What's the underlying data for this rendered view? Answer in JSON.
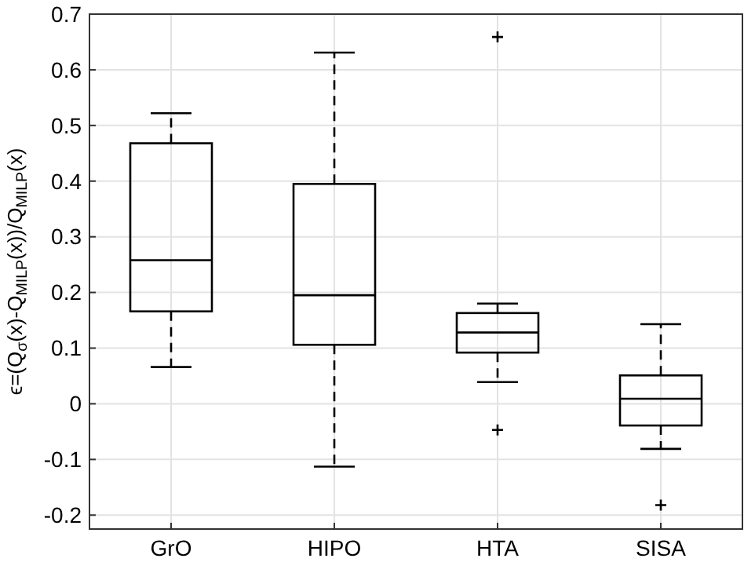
{
  "chart_data": {
    "type": "box",
    "ylabel": "ϵ=(Q$_{σ}$(x)-Q$_{MILP}$(x))/Q$_{MILP}$(x)",
    "categories": [
      "GrO",
      "HIPO",
      "HTA",
      "SISA"
    ],
    "boxes": [
      {
        "low": 0.066,
        "q1": 0.166,
        "median": 0.258,
        "q3": 0.468,
        "high": 0.522
      },
      {
        "low": -0.113,
        "q1": 0.106,
        "median": 0.195,
        "q3": 0.395,
        "high": 0.631
      },
      {
        "low": 0.039,
        "q1": 0.092,
        "median": 0.128,
        "q3": 0.163,
        "high": 0.18,
        "outliers": [
          0.659,
          -0.047
        ]
      },
      {
        "low": -0.081,
        "q1": -0.039,
        "median": 0.009,
        "q3": 0.051,
        "high": 0.143,
        "outliers": [
          -0.182
        ]
      }
    ],
    "ylim": [
      -0.225,
      0.7
    ],
    "yticks": [
      -0.2,
      -0.1,
      0,
      0.1,
      0.2,
      0.3,
      0.4,
      0.5,
      0.6,
      0.7
    ],
    "grid": true,
    "line_style": "dashed",
    "marker": "cross"
  }
}
